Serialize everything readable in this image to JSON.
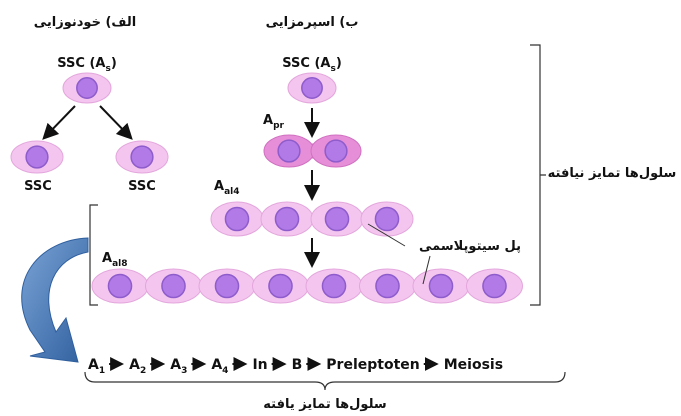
{
  "self_renewal": {
    "title": "الف) خودنوزایی",
    "parent": {
      "text": "SSC (A",
      "sub": "s",
      "end": ")"
    },
    "daughters": [
      "SSC",
      "SSC"
    ]
  },
  "spermatogenesis": {
    "title": "ب) اسپرمزایی",
    "stem": {
      "text": "SSC (A",
      "sub": "s",
      "end": ")"
    },
    "stages": [
      {
        "base": "A",
        "sub": "pr"
      },
      {
        "base": "A",
        "sub": "al4"
      },
      {
        "base": "A",
        "sub": "al8"
      }
    ]
  },
  "cytoplasmic_bridge": "پل سیتوپلاسمی",
  "undifferentiated_label": "سلول‌ها تمایز نیافته",
  "sequence": [
    {
      "base": "A",
      "sub": "1"
    },
    {
      "base": "A",
      "sub": "2"
    },
    {
      "base": "A",
      "sub": "3"
    },
    {
      "base": "A",
      "sub": "4"
    },
    "In",
    "B",
    "Preleptoten",
    "Meiosis"
  ],
  "differentiated_label": "سلول‌ها تمایز یافته"
}
